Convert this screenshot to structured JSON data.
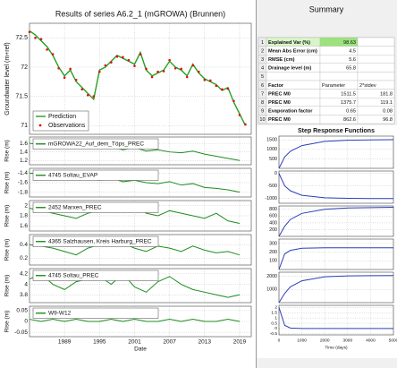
{
  "summary": {
    "title": "Summary",
    "rows": [
      [
        1,
        "Explained Var (%)",
        98.63
      ],
      [
        2,
        "Mean Abs Error (cm)",
        4.5
      ],
      [
        3,
        "RMSE (cm)",
        5.6
      ],
      [
        4,
        "Drainage level (m)",
        65.8
      ],
      [
        5
      ],
      [
        6,
        "Factor",
        "Parameter",
        "2*stdev"
      ],
      [
        7,
        "PREC M0",
        1511.5,
        181.8
      ],
      [
        8,
        "PREC M0",
        1375.7,
        119.1
      ],
      [
        9,
        "Evaporation factor",
        0.65,
        0.08
      ],
      [
        10,
        "PREC M0",
        862.6,
        96.8
      ]
    ]
  },
  "chart_data": [
    {
      "type": "line",
      "title": "Results of series A6.2_1 (mGROWA) (Brunnen)",
      "ylabel": "Groundwater level (m+ref)",
      "grid": true,
      "legend": "lower left",
      "x": [
        1983,
        1984,
        1985,
        1986,
        1987,
        1988,
        1989,
        1990,
        1991,
        1992,
        1993,
        1994,
        1995,
        1996,
        1997,
        1998,
        1999,
        2000,
        2001,
        2002,
        2003,
        2004,
        2005,
        2006,
        2007,
        2008,
        2009,
        2010,
        2011,
        2012,
        2013,
        2014,
        2015,
        2016,
        2017,
        2018,
        2019,
        2020
      ],
      "xlim": [
        1983,
        2021
      ],
      "xticks": [
        1989,
        1995,
        2001,
        2007,
        2013,
        2019
      ],
      "ylim": [
        70.85,
        72.75
      ],
      "yticks": [
        71,
        71.5,
        72,
        72.5
      ],
      "series": [
        {
          "name": "Prediction",
          "color": "#22a022",
          "mode": "line",
          "values": [
            72.62,
            72.55,
            72.45,
            72.35,
            72.2,
            72.0,
            71.85,
            71.95,
            71.75,
            71.65,
            71.55,
            71.45,
            71.95,
            72.0,
            72.1,
            72.2,
            72.15,
            72.1,
            72.05,
            72.25,
            71.95,
            71.85,
            71.9,
            71.95,
            72.1,
            72.0,
            71.95,
            71.85,
            72.05,
            71.9,
            71.8,
            71.75,
            71.7,
            71.6,
            71.65,
            71.4,
            71.2,
            71.0
          ]
        },
        {
          "name": "Observations",
          "color": "#e01010",
          "mode": "markers",
          "values": [
            72.6,
            72.5,
            72.48,
            72.3,
            72.22,
            71.98,
            71.82,
            71.97,
            71.78,
            71.62,
            71.52,
            71.5,
            71.92,
            72.03,
            72.08,
            72.18,
            72.17,
            72.12,
            72.02,
            72.22,
            71.97,
            71.83,
            71.92,
            71.93,
            72.12,
            71.98,
            71.97,
            71.83,
            72.03,
            71.92,
            71.78,
            71.77,
            71.68,
            71.62,
            71.63,
            71.42,
            71.18,
            71.02
          ]
        }
      ]
    },
    {
      "type": "line",
      "ylabel": "Rise (m)",
      "grid": true,
      "x": [
        1983,
        1985,
        1987,
        1989,
        1991,
        1993,
        1995,
        1997,
        1999,
        2001,
        2003,
        2005,
        2007,
        2009,
        2011,
        2013,
        2015,
        2017,
        2019
      ],
      "xlim": [
        1983,
        2021
      ],
      "xticks": [
        1989,
        1995,
        2001,
        2007,
        2013,
        2019
      ],
      "ylim": [
        1.1,
        1.75
      ],
      "yticks": [
        1.2,
        1.4,
        1.6
      ],
      "series": [
        {
          "name": "mGROWA22_Auf_dem_Töps_PREC",
          "color": "#1e8c1e",
          "values": [
            1.6,
            1.58,
            1.55,
            1.52,
            1.55,
            1.5,
            1.48,
            1.52,
            1.45,
            1.5,
            1.42,
            1.45,
            1.4,
            1.38,
            1.42,
            1.35,
            1.3,
            1.25,
            1.2
          ]
        }
      ]
    },
    {
      "type": "line",
      "ylabel": "Rise (m)",
      "grid": true,
      "x": [
        1983,
        1985,
        1987,
        1989,
        1991,
        1993,
        1995,
        1997,
        1999,
        2001,
        2003,
        2005,
        2007,
        2009,
        2011,
        2013,
        2015,
        2017,
        2019
      ],
      "xlim": [
        1983,
        2021
      ],
      "xticks": [
        1989,
        1995,
        2001,
        2007,
        2013,
        2019
      ],
      "ylim": [
        -1.9,
        -1.3
      ],
      "yticks": [
        -1.8,
        -1.6,
        -1.4
      ],
      "series": [
        {
          "name": "4745 Soltau_EVAP",
          "color": "#1e8c1e",
          "values": [
            -1.4,
            -1.42,
            -1.45,
            -1.5,
            -1.48,
            -1.52,
            -1.55,
            -1.5,
            -1.58,
            -1.55,
            -1.6,
            -1.62,
            -1.58,
            -1.65,
            -1.62,
            -1.7,
            -1.72,
            -1.75,
            -1.8
          ]
        }
      ]
    },
    {
      "type": "line",
      "ylabel": "Rise (m)",
      "grid": true,
      "x": [
        1983,
        1985,
        1987,
        1989,
        1991,
        1993,
        1995,
        1997,
        1999,
        2001,
        2003,
        2005,
        2007,
        2009,
        2011,
        2013,
        2015,
        2017,
        2019
      ],
      "xlim": [
        1983,
        2021
      ],
      "xticks": [
        1989,
        1995,
        2001,
        2007,
        2013,
        2019
      ],
      "ylim": [
        1.5,
        2.1
      ],
      "yticks": [
        1.6,
        1.8,
        2
      ],
      "series": [
        {
          "name": "2452 Marxen_PREC",
          "color": "#1e8c1e",
          "values": [
            1.95,
            1.9,
            1.85,
            1.8,
            1.75,
            1.85,
            1.9,
            1.95,
            1.9,
            2.0,
            1.85,
            1.8,
            1.9,
            1.85,
            1.8,
            1.75,
            1.85,
            1.7,
            1.65
          ]
        }
      ]
    },
    {
      "type": "line",
      "ylabel": "Rise (m)",
      "grid": true,
      "x": [
        1983,
        1985,
        1987,
        1989,
        1991,
        1993,
        1995,
        1997,
        1999,
        2001,
        2003,
        2005,
        2007,
        2009,
        2011,
        2013,
        2015,
        2017,
        2019
      ],
      "xlim": [
        1983,
        2021
      ],
      "xticks": [
        1989,
        1995,
        2001,
        2007,
        2013,
        2019
      ],
      "ylim": [
        0.1,
        0.55
      ],
      "yticks": [
        0.2,
        0.4
      ],
      "series": [
        {
          "name": "4365 Salzhausen, Kreis Harburg_PREC",
          "color": "#1e8c1e",
          "values": [
            0.4,
            0.38,
            0.35,
            0.3,
            0.25,
            0.35,
            0.4,
            0.38,
            0.42,
            0.35,
            0.3,
            0.38,
            0.35,
            0.3,
            0.38,
            0.32,
            0.28,
            0.3,
            0.25
          ]
        }
      ]
    },
    {
      "type": "line",
      "ylabel": "Rise (m)",
      "grid": true,
      "x": [
        1983,
        1985,
        1987,
        1989,
        1991,
        1993,
        1995,
        1997,
        1999,
        2001,
        2003,
        2005,
        2007,
        2009,
        2011,
        2013,
        2015,
        2017,
        2019
      ],
      "xlim": [
        1983,
        2021
      ],
      "xticks": [
        1989,
        1995,
        2001,
        2007,
        2013,
        2019
      ],
      "ylim": [
        3.65,
        4.3
      ],
      "yticks": [
        3.8,
        4,
        4.2
      ],
      "series": [
        {
          "name": "4745 Soltau_PREC",
          "color": "#1e8c1e",
          "values": [
            4.1,
            4.2,
            4.0,
            3.9,
            4.05,
            4.1,
            4.15,
            4.0,
            4.2,
            3.95,
            3.85,
            4.05,
            4.15,
            4.0,
            3.9,
            3.85,
            3.8,
            3.75,
            3.8
          ]
        }
      ]
    },
    {
      "type": "line",
      "ylabel": "Rise (m)",
      "xlabel": "Date",
      "grid": true,
      "x": [
        1983,
        1985,
        1987,
        1989,
        1991,
        1993,
        1995,
        1997,
        1999,
        2001,
        2003,
        2005,
        2007,
        2009,
        2011,
        2013,
        2015,
        2017,
        2019
      ],
      "xlim": [
        1983,
        2021
      ],
      "xticks": [
        1989,
        1995,
        2001,
        2007,
        2013,
        2019
      ],
      "ylim": [
        -0.07,
        0.07
      ],
      "yticks": [
        -0.05,
        0,
        0.05
      ],
      "series": [
        {
          "name": "W9-W12",
          "color": "#1e8c1e",
          "values": [
            0.01,
            0,
            0.01,
            0,
            0.01,
            0,
            0,
            0.01,
            0,
            0.01,
            0,
            0,
            0.01,
            0,
            0.01,
            0,
            0,
            0.01,
            0
          ]
        }
      ]
    },
    {
      "type": "line",
      "title": "Step Response Functions",
      "grid": true,
      "x": [
        0,
        250,
        500,
        1000,
        2000,
        3000,
        4000,
        5000
      ],
      "xlim": [
        0,
        5000
      ],
      "xticks": [
        0,
        1000,
        2000,
        3000,
        4000,
        5000
      ],
      "ylim": [
        0,
        1700
      ],
      "yticks": [
        500,
        1000,
        1500
      ],
      "series": [
        {
          "color": "#2b3fb8",
          "values": [
            0,
            600,
            900,
            1200,
            1420,
            1480,
            1500,
            1510
          ]
        }
      ]
    },
    {
      "type": "line",
      "grid": true,
      "x": [
        0,
        250,
        500,
        1000,
        2000,
        3000,
        4000,
        5000
      ],
      "xlim": [
        0,
        5000
      ],
      "xticks": [
        0,
        1000,
        2000,
        3000,
        4000,
        5000
      ],
      "ylim": [
        -1200,
        100
      ],
      "yticks": [
        -1000,
        -500,
        0
      ],
      "series": [
        {
          "color": "#2b3fb8",
          "values": [
            0,
            -500,
            -700,
            -880,
            -980,
            -1000,
            -1010,
            -1010
          ]
        }
      ]
    },
    {
      "type": "line",
      "grid": true,
      "x": [
        0,
        250,
        500,
        1000,
        2000,
        3000,
        4000,
        5000
      ],
      "xlim": [
        0,
        5000
      ],
      "xticks": [
        0,
        1000,
        2000,
        3000,
        4000,
        5000
      ],
      "ylim": [
        0,
        900
      ],
      "yticks": [
        200,
        400,
        600,
        800
      ],
      "series": [
        {
          "color": "#2b3fb8",
          "values": [
            0,
            300,
            500,
            680,
            800,
            840,
            850,
            860
          ]
        }
      ]
    },
    {
      "type": "line",
      "grid": true,
      "x": [
        0,
        250,
        500,
        1000,
        2000,
        3000,
        4000,
        5000
      ],
      "xlim": [
        0,
        5000
      ],
      "xticks": [
        0,
        1000,
        2000,
        3000,
        4000,
        5000
      ],
      "ylim": [
        0,
        350
      ],
      "yticks": [
        100,
        200,
        300
      ],
      "series": [
        {
          "color": "#2b3fb8",
          "values": [
            0,
            180,
            220,
            245,
            250,
            250,
            250,
            250
          ]
        }
      ]
    },
    {
      "type": "line",
      "grid": true,
      "x": [
        0,
        250,
        500,
        1000,
        2000,
        3000,
        4000,
        5000
      ],
      "xlim": [
        0,
        5000
      ],
      "xticks": [
        0,
        1000,
        2000,
        3000,
        4000,
        5000
      ],
      "ylim": [
        0,
        2300
      ],
      "yticks": [
        1000,
        2000
      ],
      "series": [
        {
          "color": "#2b3fb8",
          "values": [
            0,
            700,
            1200,
            1650,
            1950,
            2020,
            2040,
            2050
          ]
        }
      ]
    },
    {
      "type": "line",
      "xlabel": "Time (days)",
      "grid": true,
      "x": [
        0,
        250,
        500,
        1000,
        2000,
        3000,
        4000,
        5000
      ],
      "xlim": [
        0,
        5000
      ],
      "xticks": [
        0,
        1000,
        2000,
        3000,
        4000,
        5000
      ],
      "ylim": [
        -0.6,
        2.2
      ],
      "yticks": [
        -0.5,
        0,
        0.5,
        1,
        1.5,
        2
      ],
      "series": [
        {
          "color": "#2b3fb8",
          "values": [
            2,
            0.3,
            0.05,
            0,
            0,
            0,
            0,
            0
          ]
        }
      ]
    }
  ]
}
